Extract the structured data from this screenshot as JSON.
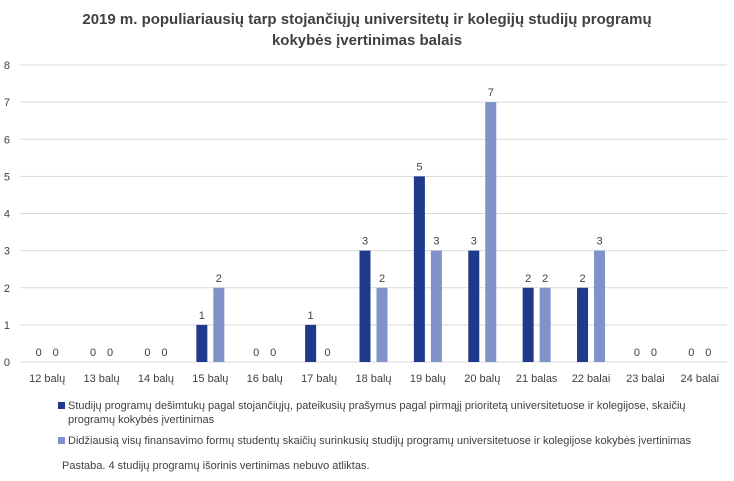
{
  "chart_data": {
    "type": "bar",
    "title_lines": [
      "2019 m. populiariausių  tarp stojančiųjų  universitetų ir kolegijų studijų programų",
      "kokybės įvertinimas balais"
    ],
    "categories": [
      "12 balų",
      "13 balų",
      "14 balų",
      "15 balų",
      "16 balų",
      "17 balų",
      "18 balų",
      "19 balų",
      "20 balų",
      "21 balas",
      "22 balai",
      "23 balai",
      "24 balai"
    ],
    "series": [
      {
        "name": "Studijų programų dešimtukų pagal stojančiųjų, pateikusių prašymus pagal pirmąjį prioritetą universitetuose ir kolegijose, skaičių programų kokybės įvertinimas",
        "color": "#1f3a8a",
        "values": [
          0,
          0,
          0,
          1,
          0,
          1,
          3,
          5,
          3,
          2,
          2,
          0,
          0
        ]
      },
      {
        "name": "Didžiausią visų finansavimo formų studentų skaičių surinkusių studijų programų universitetuose ir kolegijose kokybės įvertinimas",
        "color": "#7f93c9",
        "values": [
          0,
          0,
          0,
          2,
          0,
          0,
          2,
          3,
          7,
          2,
          3,
          0,
          0
        ]
      }
    ],
    "y_ticks": [
      "0",
      "1",
      "2",
      "3",
      "4",
      "5",
      "6",
      "7",
      "8"
    ],
    "ylim": [
      0,
      8
    ],
    "grid": true,
    "legend_position": "bottom"
  },
  "note": "Pastaba.  4 studijų programų išorinis vertinimas nebuvo atliktas."
}
